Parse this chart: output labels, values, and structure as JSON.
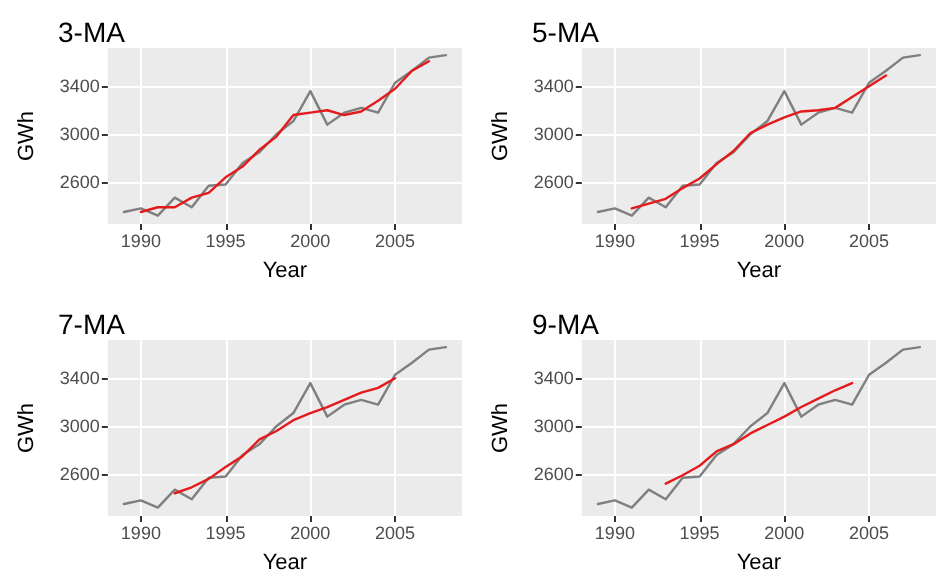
{
  "chart_data": [
    {
      "type": "line",
      "title": "3-MA",
      "xlabel": "Year",
      "ylabel": "GWh",
      "xlim": [
        1988.05,
        2008.95
      ],
      "xticks": [
        1990,
        1995,
        2000,
        2005
      ],
      "ylim": [
        2250,
        3720
      ],
      "yticks": [
        2600,
        3000,
        3400
      ],
      "grid": true,
      "marker": "none",
      "series": [
        {
          "color": "#7f7f7f",
          "x": [
            1989,
            1990,
            1991,
            1992,
            1993,
            1994,
            1995,
            1996,
            1997,
            1998,
            1999,
            2000,
            2001,
            2002,
            2003,
            2004,
            2005,
            2006,
            2007,
            2008
          ],
          "values": [
            2350,
            2380,
            2320,
            2470,
            2390,
            2570,
            2580,
            2760,
            2850,
            3000,
            3110,
            3360,
            3080,
            3180,
            3220,
            3180,
            3430,
            3530,
            3640,
            3660
          ]
        },
        {
          "color": "#e41a1c",
          "x": [
            1990,
            1991,
            1992,
            1993,
            1994,
            1995,
            1996,
            1997,
            1998,
            1999,
            2000,
            2001,
            2002,
            2003,
            2004,
            2005,
            2006,
            2007
          ],
          "values": [
            2350,
            2390,
            2390,
            2470,
            2510,
            2640,
            2730,
            2870,
            2980,
            3160,
            3180,
            3200,
            3160,
            3190,
            3280,
            3380,
            3530,
            3610
          ]
        }
      ]
    },
    {
      "type": "line",
      "title": "5-MA",
      "xlabel": "Year",
      "ylabel": "GWh",
      "xlim": [
        1988.05,
        2008.95
      ],
      "xticks": [
        1990,
        1995,
        2000,
        2005
      ],
      "ylim": [
        2250,
        3720
      ],
      "yticks": [
        2600,
        3000,
        3400
      ],
      "grid": true,
      "marker": "none",
      "series": [
        {
          "color": "#7f7f7f",
          "x": [
            1989,
            1990,
            1991,
            1992,
            1993,
            1994,
            1995,
            1996,
            1997,
            1998,
            1999,
            2000,
            2001,
            2002,
            2003,
            2004,
            2005,
            2006,
            2007,
            2008
          ],
          "values": [
            2350,
            2380,
            2320,
            2470,
            2390,
            2570,
            2580,
            2760,
            2850,
            3000,
            3110,
            3360,
            3080,
            3180,
            3220,
            3180,
            3430,
            3530,
            3640,
            3660
          ]
        },
        {
          "color": "#e41a1c",
          "x": [
            1991,
            1992,
            1993,
            1994,
            1995,
            1996,
            1997,
            1998,
            1999,
            2000,
            2001,
            2002,
            2003,
            2004,
            2005,
            2006
          ],
          "values": [
            2380,
            2420,
            2460,
            2550,
            2630,
            2750,
            2860,
            3010,
            3080,
            3140,
            3190,
            3200,
            3220,
            3310,
            3400,
            3490
          ]
        }
      ]
    },
    {
      "type": "line",
      "title": "7-MA",
      "xlabel": "Year",
      "ylabel": "GWh",
      "xlim": [
        1988.05,
        2008.95
      ],
      "xticks": [
        1990,
        1995,
        2000,
        2005
      ],
      "ylim": [
        2250,
        3720
      ],
      "yticks": [
        2600,
        3000,
        3400
      ],
      "grid": true,
      "marker": "none",
      "series": [
        {
          "color": "#7f7f7f",
          "x": [
            1989,
            1990,
            1991,
            1992,
            1993,
            1994,
            1995,
            1996,
            1997,
            1998,
            1999,
            2000,
            2001,
            2002,
            2003,
            2004,
            2005,
            2006,
            2007,
            2008
          ],
          "values": [
            2350,
            2380,
            2320,
            2470,
            2390,
            2570,
            2580,
            2760,
            2850,
            3000,
            3110,
            3360,
            3080,
            3180,
            3220,
            3180,
            3430,
            3530,
            3640,
            3660
          ]
        },
        {
          "color": "#e41a1c",
          "x": [
            1992,
            1993,
            1994,
            1995,
            1996,
            1997,
            1998,
            1999,
            2000,
            2001,
            2002,
            2003,
            2004,
            2005
          ],
          "values": [
            2440,
            2490,
            2560,
            2660,
            2750,
            2890,
            2960,
            3050,
            3110,
            3160,
            3220,
            3280,
            3320,
            3400
          ]
        }
      ]
    },
    {
      "type": "line",
      "title": "9-MA",
      "xlabel": "Year",
      "ylabel": "GWh",
      "xlim": [
        1988.05,
        2008.95
      ],
      "xticks": [
        1990,
        1995,
        2000,
        2005
      ],
      "ylim": [
        2250,
        3720
      ],
      "yticks": [
        2600,
        3000,
        3400
      ],
      "grid": true,
      "marker": "none",
      "series": [
        {
          "color": "#7f7f7f",
          "x": [
            1989,
            1990,
            1991,
            1992,
            1993,
            1994,
            1995,
            1996,
            1997,
            1998,
            1999,
            2000,
            2001,
            2002,
            2003,
            2004,
            2005,
            2006,
            2007,
            2008
          ],
          "values": [
            2350,
            2380,
            2320,
            2470,
            2390,
            2570,
            2580,
            2760,
            2850,
            3000,
            3110,
            3360,
            3080,
            3180,
            3220,
            3180,
            3430,
            3530,
            3640,
            3660
          ]
        },
        {
          "color": "#e41a1c",
          "x": [
            1993,
            1994,
            1995,
            1996,
            1997,
            1998,
            1999,
            2000,
            2001,
            2002,
            2003,
            2004
          ],
          "values": [
            2520,
            2590,
            2670,
            2790,
            2850,
            2940,
            3010,
            3080,
            3160,
            3230,
            3300,
            3360
          ]
        }
      ]
    }
  ]
}
